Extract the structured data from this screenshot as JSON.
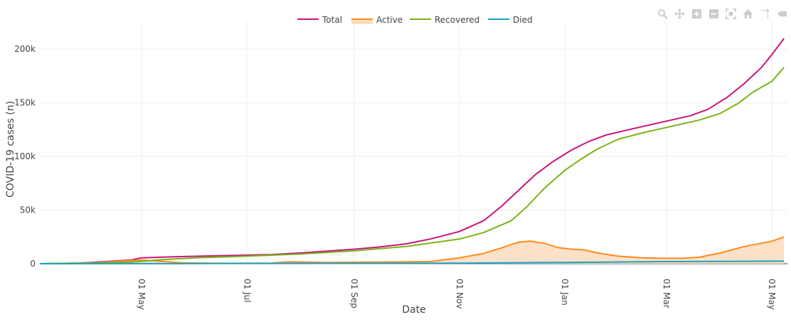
{
  "chart_data": {
    "type": "line",
    "title": "",
    "xlabel": "Date",
    "ylabel": "COVID-19 cases (n)",
    "x_domain": [
      "2020-03-03",
      "2021-05-10"
    ],
    "ylim": [
      -2000,
      218000
    ],
    "yticks": [
      {
        "value": 0,
        "label": "0"
      },
      {
        "value": 50000,
        "label": "50k"
      },
      {
        "value": 100000,
        "label": "100k"
      },
      {
        "value": 150000,
        "label": "150k"
      },
      {
        "value": 200000,
        "label": "200k"
      }
    ],
    "xticks": [
      {
        "date": "2020-05-01",
        "label": "01 May"
      },
      {
        "date": "2020-07-01",
        "label": "01 Jul"
      },
      {
        "date": "2020-09-01",
        "label": "01 Sep"
      },
      {
        "date": "2020-11-01",
        "label": "01 Nov"
      },
      {
        "date": "2021-01-01",
        "label": "01 Jan"
      },
      {
        "date": "2021-03-01",
        "label": "01 Mar"
      },
      {
        "date": "2021-05-01",
        "label": "01 May"
      }
    ],
    "grid": true,
    "legend_position": "top-center",
    "series": [
      {
        "name": "Total",
        "color": "#c7157a",
        "points": [
          [
            "2020-03-03",
            0
          ],
          [
            "2020-03-25",
            500
          ],
          [
            "2020-04-10",
            2000
          ],
          [
            "2020-04-25",
            3500
          ],
          [
            "2020-05-01",
            5500
          ],
          [
            "2020-05-20",
            6500
          ],
          [
            "2020-06-15",
            7500
          ],
          [
            "2020-07-15",
            8500
          ],
          [
            "2020-08-01",
            10000
          ],
          [
            "2020-09-01",
            13500
          ],
          [
            "2020-09-15",
            15500
          ],
          [
            "2020-10-01",
            18500
          ],
          [
            "2020-10-15",
            23000
          ],
          [
            "2020-11-01",
            30000
          ],
          [
            "2020-11-15",
            40000
          ],
          [
            "2020-11-25",
            53000
          ],
          [
            "2020-12-05",
            68000
          ],
          [
            "2020-12-15",
            83000
          ],
          [
            "2020-12-25",
            95000
          ],
          [
            "2021-01-05",
            106000
          ],
          [
            "2021-01-15",
            114000
          ],
          [
            "2021-01-25",
            120000
          ],
          [
            "2021-02-10",
            126000
          ],
          [
            "2021-03-01",
            133000
          ],
          [
            "2021-03-15",
            138000
          ],
          [
            "2021-03-25",
            144000
          ],
          [
            "2021-04-05",
            155000
          ],
          [
            "2021-04-15",
            168000
          ],
          [
            "2021-04-25",
            183000
          ],
          [
            "2021-05-01",
            195000
          ],
          [
            "2021-05-08",
            210000
          ]
        ]
      },
      {
        "name": "Active",
        "color": "#ff8a1c",
        "fill": "#fcdcc0",
        "points": [
          [
            "2020-03-03",
            0
          ],
          [
            "2020-04-05",
            1000
          ],
          [
            "2020-04-20",
            2500
          ],
          [
            "2020-05-01",
            3500
          ],
          [
            "2020-05-10",
            2500
          ],
          [
            "2020-05-25",
            800
          ],
          [
            "2020-06-15",
            400
          ],
          [
            "2020-07-15",
            600
          ],
          [
            "2020-07-25",
            1800
          ],
          [
            "2020-08-15",
            1200
          ],
          [
            "2020-09-15",
            1500
          ],
          [
            "2020-10-15",
            2000
          ],
          [
            "2020-11-01",
            5500
          ],
          [
            "2020-11-15",
            9500
          ],
          [
            "2020-11-25",
            14500
          ],
          [
            "2020-12-05",
            20000
          ],
          [
            "2020-12-12",
            21000
          ],
          [
            "2020-12-20",
            19000
          ],
          [
            "2020-12-28",
            15000
          ],
          [
            "2021-01-05",
            13500
          ],
          [
            "2021-01-12",
            13000
          ],
          [
            "2021-01-20",
            10000
          ],
          [
            "2021-02-01",
            7000
          ],
          [
            "2021-02-15",
            5500
          ],
          [
            "2021-02-25",
            5000
          ],
          [
            "2021-03-10",
            5000
          ],
          [
            "2021-03-20",
            6000
          ],
          [
            "2021-04-01",
            10000
          ],
          [
            "2021-04-15",
            16000
          ],
          [
            "2021-05-01",
            21000
          ],
          [
            "2021-05-08",
            25000
          ]
        ]
      },
      {
        "name": "Recovered",
        "color": "#7ab317",
        "points": [
          [
            "2020-03-03",
            0
          ],
          [
            "2020-04-01",
            500
          ],
          [
            "2020-04-25",
            1500
          ],
          [
            "2020-05-10",
            3500
          ],
          [
            "2020-06-01",
            5500
          ],
          [
            "2020-07-01",
            7000
          ],
          [
            "2020-08-01",
            9000
          ],
          [
            "2020-09-01",
            12000
          ],
          [
            "2020-10-01",
            16000
          ],
          [
            "2020-11-01",
            23000
          ],
          [
            "2020-11-15",
            29000
          ],
          [
            "2020-12-01",
            40000
          ],
          [
            "2020-12-10",
            53000
          ],
          [
            "2020-12-20",
            70000
          ],
          [
            "2021-01-01",
            87000
          ],
          [
            "2021-01-10",
            97000
          ],
          [
            "2021-01-20",
            107000
          ],
          [
            "2021-02-01",
            116000
          ],
          [
            "2021-02-15",
            122000
          ],
          [
            "2021-03-01",
            127000
          ],
          [
            "2021-03-20",
            134000
          ],
          [
            "2021-04-01",
            140000
          ],
          [
            "2021-04-12",
            150000
          ],
          [
            "2021-04-20",
            160000
          ],
          [
            "2021-05-01",
            170000
          ],
          [
            "2021-05-08",
            183000
          ]
        ]
      },
      {
        "name": "Died",
        "color": "#17a2c7",
        "points": [
          [
            "2020-03-03",
            0
          ],
          [
            "2020-06-01",
            150
          ],
          [
            "2020-09-01",
            300
          ],
          [
            "2020-11-01",
            500
          ],
          [
            "2021-01-01",
            1200
          ],
          [
            "2021-03-01",
            2000
          ],
          [
            "2021-05-08",
            2400
          ]
        ]
      }
    ]
  },
  "modebar": {
    "icons": [
      "zoom-icon",
      "pan-icon",
      "zoom-in-icon",
      "zoom-out-icon",
      "autoscale-icon",
      "reset-axes-icon",
      "spike-lines-icon",
      "hover-closest-icon"
    ]
  }
}
